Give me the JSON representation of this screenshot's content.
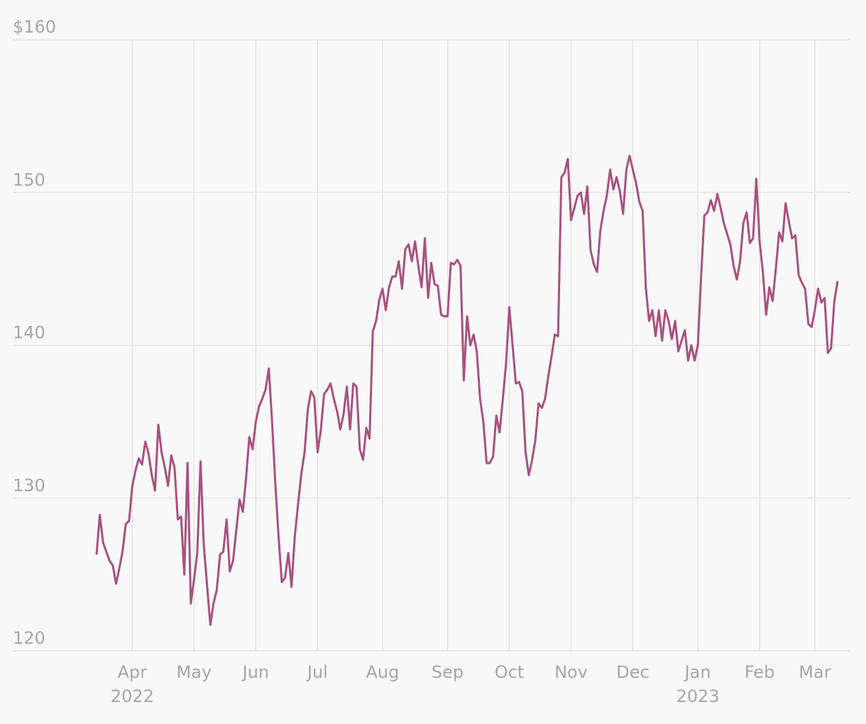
{
  "chart_data": {
    "type": "line",
    "categories": [
      null,
      null,
      null,
      null,
      null,
      null,
      null,
      null,
      null,
      null,
      null,
      "Apr",
      null,
      null,
      null,
      null,
      null,
      null,
      null,
      null,
      null,
      null,
      null,
      null,
      null,
      null,
      null,
      null,
      null,
      null,
      "May",
      null,
      null,
      null,
      null,
      null,
      null,
      null,
      null,
      null,
      null,
      null,
      null,
      null,
      null,
      null,
      null,
      null,
      null,
      "Jun",
      null,
      null,
      null,
      null,
      null,
      null,
      null,
      null,
      null,
      null,
      null,
      null,
      null,
      null,
      null,
      null,
      null,
      null,
      "Jul",
      null,
      null,
      null,
      null,
      null,
      null,
      null,
      null,
      null,
      null,
      null,
      null,
      null,
      null,
      null,
      null,
      null,
      null,
      null,
      "Aug",
      null,
      null,
      null,
      null,
      null,
      null,
      null,
      null,
      null,
      null,
      null,
      null,
      null,
      null,
      null,
      null,
      null,
      null,
      null,
      "Sep",
      null,
      null,
      null,
      null,
      null,
      null,
      null,
      null,
      null,
      null,
      null,
      null,
      null,
      null,
      null,
      null,
      null,
      null,
      "Oct",
      null,
      null,
      null,
      null,
      null,
      null,
      null,
      null,
      null,
      null,
      null,
      null,
      null,
      null,
      null,
      null,
      null,
      null,
      "Nov",
      null,
      null,
      null,
      null,
      null,
      null,
      null,
      null,
      null,
      null,
      null,
      null,
      null,
      null,
      null,
      null,
      null,
      null,
      "Dec",
      null,
      null,
      null,
      null,
      null,
      null,
      null,
      null,
      null,
      null,
      null,
      null,
      null,
      null,
      null,
      null,
      null,
      null,
      null,
      "Jan",
      null,
      null,
      null,
      null,
      null,
      null,
      null,
      null,
      null,
      null,
      null,
      null,
      null,
      null,
      null,
      null,
      null,
      null,
      "Feb",
      null,
      null,
      null,
      null,
      null,
      null,
      null,
      null,
      null,
      null,
      null,
      null,
      null,
      null,
      null,
      null,
      "Mar",
      null,
      null,
      null,
      null,
      null,
      null,
      null
    ],
    "year_labels": [
      "2022",
      "2023"
    ],
    "series": [
      {
        "color": "#a8517f",
        "values": [
          126.3,
          128.9,
          127.1,
          126.5,
          125.9,
          125.6,
          124.4,
          125.4,
          126.5,
          128.3,
          128.5,
          130.8,
          131.8,
          132.6,
          132.2,
          133.7,
          132.9,
          131.5,
          130.5,
          134.8,
          133.0,
          132.0,
          130.8,
          132.8,
          132.0,
          128.6,
          128.8,
          125.0,
          132.3,
          123.1,
          124.7,
          126.4,
          132.4,
          126.9,
          124.3,
          121.7,
          123.1,
          124.0,
          126.3,
          126.5,
          128.6,
          125.2,
          125.9,
          127.9,
          129.9,
          129.1,
          131.3,
          134.0,
          133.2,
          135.0,
          136.0,
          136.5,
          137.1,
          138.5,
          135.0,
          131.0,
          127.5,
          124.5,
          124.8,
          126.4,
          124.2,
          127.5,
          129.6,
          131.6,
          133.0,
          135.8,
          137.0,
          136.6,
          133.0,
          134.4,
          136.8,
          137.1,
          137.5,
          136.5,
          135.7,
          134.5,
          135.5,
          137.3,
          134.5,
          137.5,
          137.3,
          133.2,
          132.5,
          134.6,
          133.9,
          140.9,
          141.6,
          143.0,
          143.7,
          142.3,
          143.8,
          144.5,
          144.5,
          145.5,
          143.7,
          146.3,
          146.6,
          145.5,
          146.8,
          145.2,
          143.8,
          147.0,
          143.1,
          145.4,
          144.0,
          143.9,
          142.0,
          141.9,
          141.9,
          145.4,
          145.3,
          145.6,
          145.2,
          137.7,
          141.9,
          140.0,
          140.7,
          139.6,
          136.5,
          135.0,
          132.3,
          132.3,
          132.7,
          135.4,
          134.3,
          136.5,
          138.8,
          142.5,
          140.0,
          137.5,
          137.6,
          137.0,
          133.0,
          131.5,
          132.5,
          133.8,
          136.2,
          135.9,
          136.5,
          138.0,
          139.3,
          140.7,
          140.6,
          151.0,
          151.3,
          152.2,
          148.2,
          149.0,
          149.8,
          150.0,
          148.6,
          150.4,
          146.2,
          145.3,
          144.8,
          147.5,
          148.8,
          149.8,
          151.5,
          150.2,
          151.0,
          150.1,
          148.6,
          151.5,
          152.4,
          151.5,
          150.6,
          149.4,
          148.8,
          143.8,
          141.6,
          142.3,
          140.6,
          142.3,
          140.3,
          142.3,
          141.6,
          140.4,
          141.6,
          139.6,
          140.3,
          141.0,
          139.0,
          140.0,
          139.0,
          140.0,
          144.5,
          148.5,
          148.7,
          149.5,
          148.8,
          149.9,
          149.0,
          148.0,
          147.3,
          146.6,
          145.2,
          144.3,
          145.5,
          148.0,
          148.7,
          146.7,
          147.0,
          150.9,
          146.8,
          144.8,
          142.0,
          143.8,
          142.9,
          145.0,
          147.4,
          146.8,
          149.3,
          148.1,
          147.0,
          147.2,
          144.6,
          144.1,
          143.7,
          141.4,
          141.2,
          142.3,
          143.7,
          142.8,
          143.1,
          139.5,
          139.8,
          142.9,
          144.2
        ]
      }
    ],
    "ylim": [
      120,
      160
    ],
    "yticks": [
      120,
      130,
      140,
      150,
      {
        "value": 160,
        "label": "$160"
      }
    ],
    "grid": true
  }
}
